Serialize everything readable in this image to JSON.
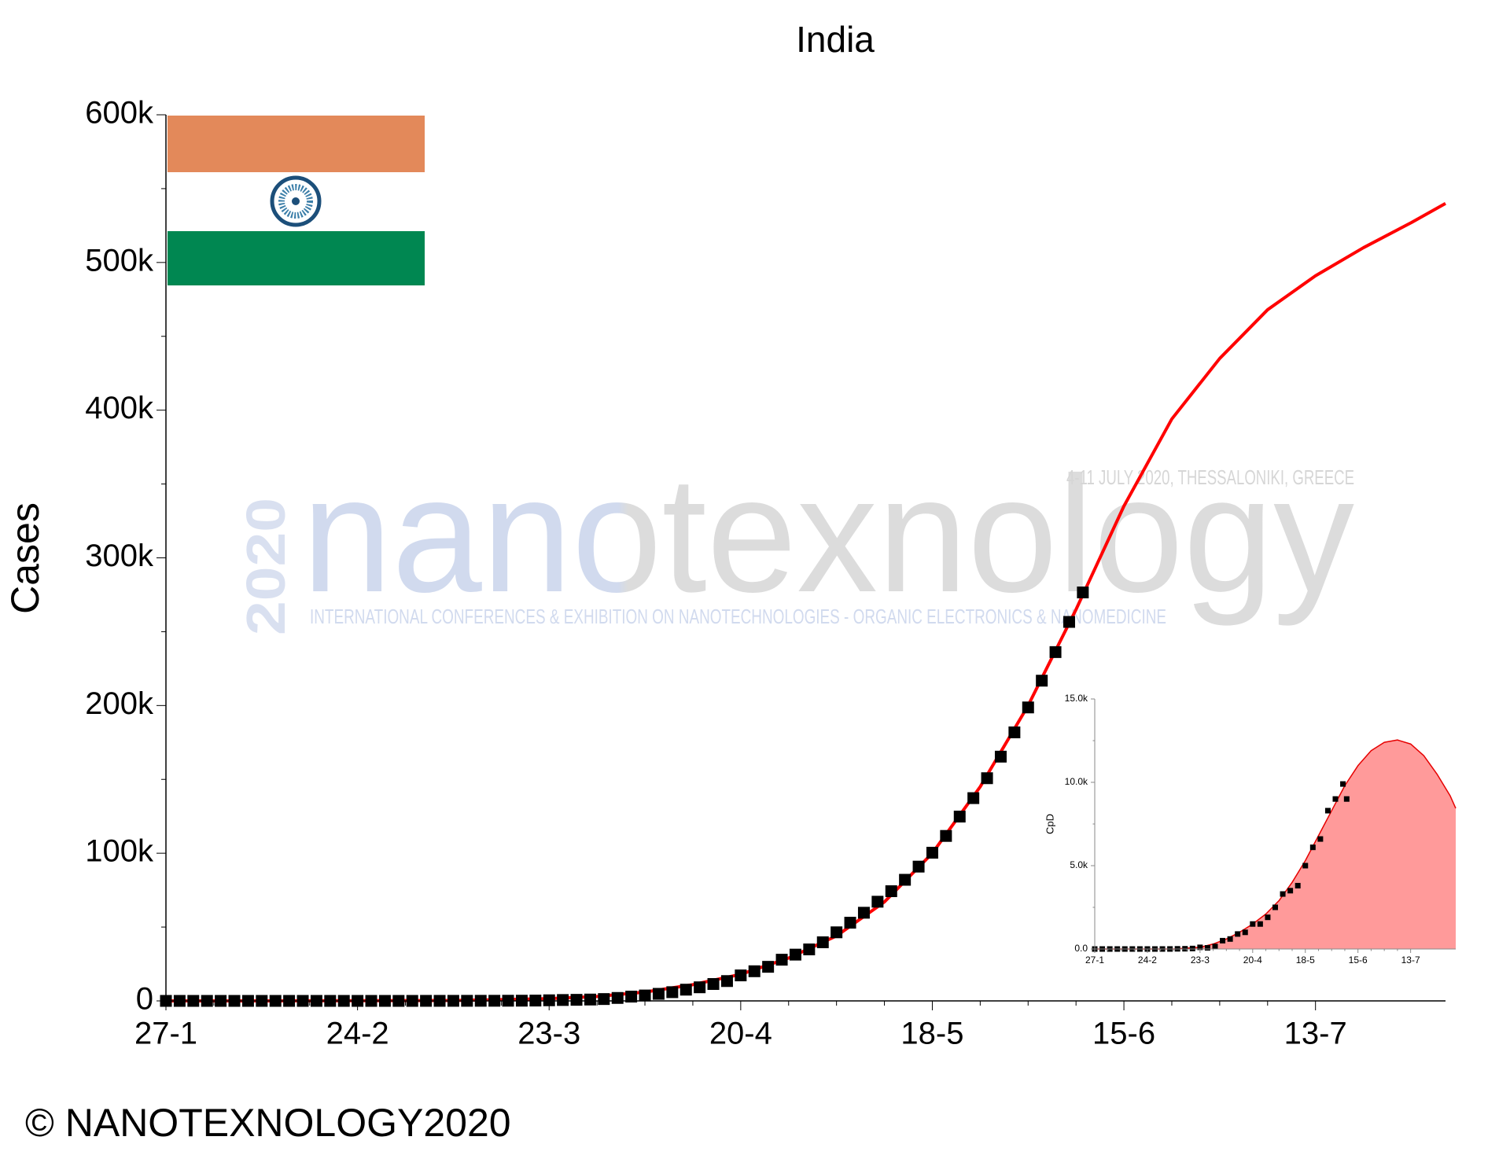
{
  "chart_data": [
    {
      "type": "line",
      "title": "India",
      "y_label": "Cases",
      "xlim": [
        0,
        187
      ],
      "xticks": [
        {
          "value": 0,
          "label": "27-1"
        },
        {
          "value": 28,
          "label": "24-2"
        },
        {
          "value": 56,
          "label": "23-3"
        },
        {
          "value": 84,
          "label": "20-4"
        },
        {
          "value": 112,
          "label": "18-5"
        },
        {
          "value": 140,
          "label": "15-6"
        },
        {
          "value": 168,
          "label": "13-7"
        }
      ],
      "ylim": [
        0,
        600000
      ],
      "yticks": [
        0,
        {
          "value": 100000,
          "label": "100k"
        },
        {
          "value": 200000,
          "label": "200k"
        },
        {
          "value": 300000,
          "label": "300k"
        },
        {
          "value": 400000,
          "label": "400k"
        },
        {
          "value": 500000,
          "label": "500k"
        },
        {
          "value": 600000,
          "label": "600k"
        }
      ],
      "series": [
        {
          "mark": "square",
          "color": "#000000",
          "x": [
            0,
            2,
            4,
            6,
            8,
            10,
            12,
            14,
            16,
            18,
            20,
            22,
            24,
            26,
            28,
            30,
            32,
            34,
            36,
            38,
            40,
            42,
            44,
            46,
            48,
            50,
            52,
            54,
            56,
            58,
            60,
            62,
            64,
            66,
            68,
            70,
            72,
            74,
            76,
            78,
            80,
            82,
            84,
            86,
            88,
            90,
            92,
            94,
            96,
            98,
            100,
            102,
            104,
            106,
            108,
            110,
            112,
            114,
            116,
            118,
            120,
            122,
            124,
            126,
            128,
            130,
            132,
            134
          ],
          "values": [
            0,
            0,
            1,
            3,
            3,
            3,
            3,
            3,
            3,
            3,
            3,
            3,
            3,
            3,
            3,
            3,
            3,
            3,
            5,
            28,
            30,
            43,
            56,
            73,
            84,
            114,
            143,
            223,
            415,
            606,
            727,
            918,
            1251,
            1998,
            2902,
            3667,
            4778,
            5916,
            7600,
            9205,
            11438,
            13430,
            17265,
            20080,
            23077,
            27890,
            31332,
            34863,
            39699,
            46437,
            52952,
            59695,
            67161,
            74281,
            81997,
            90927,
            100328,
            111698,
            124794,
            137300,
            150793,
            165386,
            181827,
            198706,
            216824,
            236184,
            256611,
            276583
          ]
        },
        {
          "mark": "line",
          "color": "#ff0000",
          "x": [
            0,
            14,
            28,
            42,
            56,
            63,
            70,
            77,
            84,
            91,
            98,
            105,
            112,
            119,
            126,
            133,
            140,
            147,
            154,
            161,
            168,
            175,
            182,
            187
          ],
          "values": [
            0,
            0,
            100,
            300,
            1500,
            3000,
            6000,
            11000,
            18000,
            29000,
            44000,
            67000,
            100000,
            145000,
            200000,
            265000,
            335000,
            394000,
            435000,
            468000,
            491000,
            510000,
            527000,
            540000
          ]
        }
      ]
    },
    {
      "type": "area",
      "y_label": "CpD",
      "xlim": [
        0,
        192
      ],
      "xticks": [
        {
          "value": 0,
          "label": "27-1"
        },
        {
          "value": 28,
          "label": "24-2"
        },
        {
          "value": 56,
          "label": "23-3"
        },
        {
          "value": 84,
          "label": "20-4"
        },
        {
          "value": 112,
          "label": "18-5"
        },
        {
          "value": 140,
          "label": "15-6"
        },
        {
          "value": 168,
          "label": "13-7"
        }
      ],
      "ylim": [
        0,
        15000
      ],
      "yticks": [
        {
          "value": 0,
          "label": "0.0"
        },
        {
          "value": 5000,
          "label": "5.0k"
        },
        {
          "value": 10000,
          "label": "10.0k"
        },
        {
          "value": 15000,
          "label": "15.0k"
        }
      ],
      "series": [
        {
          "mark": "area",
          "color": "#e60000",
          "fill": "#ff9a9a",
          "x": [
            0,
            42,
            56,
            63,
            70,
            77,
            84,
            91,
            98,
            105,
            112,
            119,
            126,
            133,
            140,
            147,
            154,
            161,
            168,
            175,
            182,
            189,
            192
          ],
          "values": [
            0,
            0,
            100,
            300,
            600,
            1000,
            1500,
            2100,
            2900,
            4000,
            5300,
            6800,
            8300,
            9800,
            11000,
            11900,
            12400,
            12540,
            12300,
            11600,
            10500,
            9200,
            8440
          ]
        },
        {
          "mark": "square",
          "color": "#000000",
          "x": [
            0,
            4,
            8,
            12,
            16,
            20,
            24,
            28,
            32,
            36,
            40,
            44,
            48,
            52,
            56,
            60,
            64,
            68,
            72,
            76,
            80,
            84,
            88,
            92,
            96,
            100,
            104,
            108,
            112,
            116,
            120,
            124,
            128,
            132,
            134
          ],
          "values": [
            0,
            0,
            0,
            0,
            0,
            0,
            0,
            0,
            0,
            1,
            2,
            10,
            15,
            30,
            100,
            70,
            150,
            500,
            600,
            900,
            1000,
            1500,
            1500,
            1900,
            2500,
            3300,
            3500,
            3800,
            5000,
            6100,
            6600,
            8300,
            9000,
            9900,
            9000
          ]
        }
      ]
    }
  ],
  "watermark": {
    "brand": "nanotexnology",
    "year": "2020",
    "event": "4-11 JULY 2020, THESSALONIKI, GREECE",
    "tagline": "INTERNATIONAL CONFERENCES & EXHIBITION ON NANOTECHNOLOGIES - ORGANIC ELECTRONICS & NANOMEDICINE"
  },
  "footer": "© NANOTEXNOLOGY2020"
}
